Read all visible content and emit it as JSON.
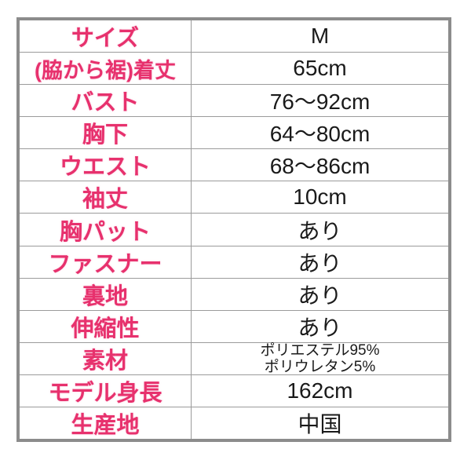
{
  "table": {
    "description": "garment size specification table",
    "rows": [
      {
        "label": "サイズ",
        "value": "M"
      },
      {
        "label": "(脇から裾)着丈",
        "value": "65cm"
      },
      {
        "label": "バスト",
        "value": "76〜92cm"
      },
      {
        "label": "胸下",
        "value": "64〜80cm"
      },
      {
        "label": "ウエスト",
        "value": "68〜86cm"
      },
      {
        "label": "袖丈",
        "value": "10cm"
      },
      {
        "label": "胸パット",
        "value": "あり"
      },
      {
        "label": "ファスナー",
        "value": "あり"
      },
      {
        "label": "裏地",
        "value": "あり"
      },
      {
        "label": "伸縮性",
        "value": "あり"
      },
      {
        "label": "素材",
        "value_line1": "ポリエステル95%",
        "value_line2": "ポリウレタン5%"
      },
      {
        "label": "モデル身長",
        "value": "162cm"
      },
      {
        "label": "生産地",
        "value": "中国"
      }
    ],
    "colors": {
      "label_pink": "#e7316d",
      "value_black": "#1a1a1a",
      "outer_border_gray": "#8c8c8c",
      "grid_line_gray": "#9b9b9b",
      "background": "#ffffff"
    }
  }
}
